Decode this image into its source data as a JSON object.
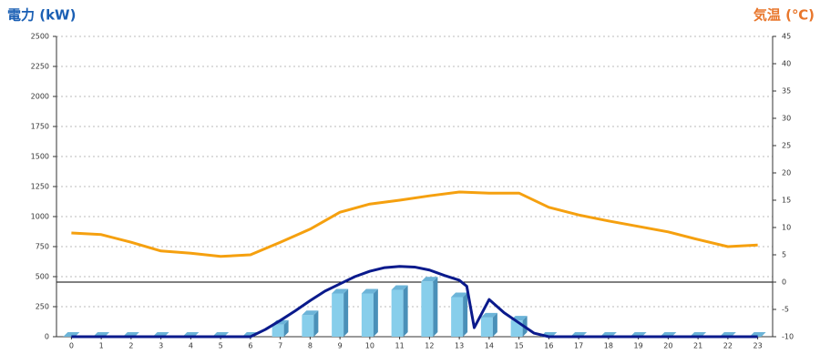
{
  "chart_data": {
    "type": "bar",
    "y_label": "電力 (kW)",
    "y2_label": "気温 (℃)",
    "y_label_color": "#1a5fb4",
    "y2_label_color": "#e8762b",
    "categories": [
      "0",
      "1",
      "2",
      "3",
      "4",
      "5",
      "6",
      "7",
      "8",
      "9",
      "10",
      "11",
      "12",
      "13",
      "14",
      "15",
      "16",
      "17",
      "18",
      "19",
      "20",
      "21",
      "22",
      "23"
    ],
    "ylim": [
      0,
      2500
    ],
    "yticks": [
      0,
      250,
      500,
      750,
      1000,
      1250,
      1500,
      1750,
      2000,
      2250,
      2500
    ],
    "y2lim": [
      -10,
      45
    ],
    "y2ticks": [
      -10,
      -5,
      0,
      5,
      10,
      15,
      20,
      25,
      30,
      35,
      40,
      45
    ],
    "grid": true,
    "y2_zero_line": true,
    "series": [
      {
        "type": "bar",
        "color": "#87ceeb",
        "values": [
          0,
          0,
          0,
          0,
          0,
          0,
          0,
          100,
          180,
          360,
          360,
          390,
          460,
          330,
          160,
          135,
          0,
          0,
          0,
          0,
          0,
          0,
          0,
          0
        ]
      },
      {
        "type": "line",
        "color": "#0a1a8c",
        "x": [
          0,
          1,
          2,
          3,
          4,
          5,
          6,
          6.5,
          7,
          7.5,
          8,
          8.5,
          9,
          9.5,
          10,
          10.5,
          11,
          11.5,
          12,
          12.5,
          13,
          13.25,
          13.5,
          14,
          14.5,
          15,
          15.5,
          16,
          17,
          18,
          19,
          20,
          21,
          22,
          23
        ],
        "values": [
          0,
          0,
          0,
          0,
          0,
          0,
          0,
          60,
          135,
          215,
          300,
          380,
          440,
          500,
          545,
          575,
          585,
          580,
          555,
          510,
          470,
          420,
          75,
          310,
          200,
          115,
          30,
          0,
          0,
          0,
          0,
          0,
          0,
          0,
          0
        ]
      },
      {
        "type": "line",
        "axis": "y2",
        "color": "#f5a00f",
        "values": [
          9,
          8.7,
          7.3,
          5.7,
          5.3,
          4.7,
          5,
          7.3,
          9.7,
          12.8,
          14.3,
          15,
          15.8,
          16.5,
          16.3,
          16.3,
          13.7,
          12.3,
          11.2,
          10.2,
          9.2,
          7.8,
          6.5,
          6.8
        ]
      }
    ]
  }
}
